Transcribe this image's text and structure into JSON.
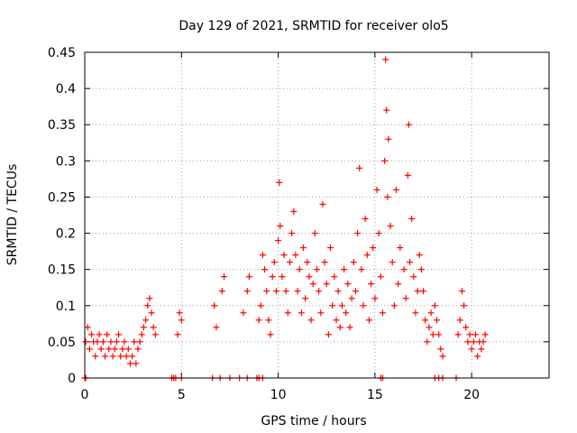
{
  "chart_data": {
    "type": "scatter",
    "title": "Day 129 of 2021, SRMTID for receiver olo5",
    "xlabel": "GPS time / hours",
    "ylabel": "SRMTID / TECUs",
    "xlim": [
      0,
      24
    ],
    "ylim": [
      0,
      0.45
    ],
    "xticks": [
      0,
      5,
      10,
      15,
      20
    ],
    "xtick_labels": [
      "0",
      "5",
      "10",
      "15",
      "20"
    ],
    "yticks": [
      0,
      0.05,
      0.1,
      0.15,
      0.2,
      0.25,
      0.3,
      0.35,
      0.4,
      0.45
    ],
    "ytick_labels": [
      "0",
      "0.05",
      "0.1",
      "0.15",
      "0.2",
      "0.25",
      "0.3",
      "0.35",
      "0.4",
      "0.45"
    ],
    "grid": true,
    "marker": "plus",
    "series": [
      {
        "name": "SRMTID",
        "color": "#ff0000",
        "x": [
          0.05,
          0.15,
          0.25,
          0.35,
          0.45,
          0.55,
          0.65,
          0.75,
          0.85,
          0.95,
          1.05,
          1.15,
          1.25,
          1.35,
          1.45,
          1.55,
          1.65,
          1.75,
          1.85,
          1.95,
          2.05,
          2.15,
          2.25,
          2.35,
          2.45,
          2.55,
          2.65,
          2.75,
          2.85,
          2.95,
          3.05,
          3.15,
          3.25,
          3.35,
          3.45,
          3.55,
          3.65,
          4.8,
          4.9,
          5.0,
          6.7,
          6.8,
          7.1,
          7.2,
          8.2,
          8.4,
          8.5,
          9.0,
          9.1,
          9.2,
          9.3,
          9.4,
          9.5,
          9.6,
          9.7,
          9.8,
          9.9,
          10.0,
          10.05,
          10.1,
          10.2,
          10.3,
          10.4,
          10.5,
          10.6,
          10.7,
          10.8,
          10.9,
          11.0,
          11.1,
          11.2,
          11.3,
          11.4,
          11.5,
          11.6,
          11.7,
          11.8,
          11.9,
          12.0,
          12.1,
          12.2,
          12.3,
          12.4,
          12.5,
          12.6,
          12.7,
          12.8,
          12.9,
          13.0,
          13.1,
          13.2,
          13.3,
          13.4,
          13.5,
          13.6,
          13.7,
          13.8,
          13.9,
          14.0,
          14.1,
          14.2,
          14.3,
          14.4,
          14.5,
          14.6,
          14.7,
          14.8,
          14.9,
          15.0,
          15.1,
          15.2,
          15.3,
          15.4,
          15.5,
          15.55,
          15.6,
          15.65,
          15.7,
          15.8,
          15.9,
          16.0,
          16.1,
          16.2,
          16.3,
          16.5,
          16.6,
          16.7,
          16.75,
          16.8,
          16.9,
          17.0,
          17.1,
          17.2,
          17.3,
          17.4,
          17.5,
          17.6,
          17.7,
          17.8,
          17.9,
          18.0,
          18.1,
          18.2,
          18.3,
          18.4,
          18.5,
          19.3,
          19.4,
          19.5,
          19.6,
          19.7,
          19.8,
          19.9,
          20.0,
          20.1,
          20.2,
          20.3,
          20.4,
          20.5,
          20.6,
          20.7,
          0.0,
          0.05,
          4.5,
          4.6,
          4.7,
          5.0,
          6.6,
          7.0,
          7.5,
          8.0,
          8.4,
          8.9,
          9.0,
          9.2,
          15.3,
          15.4,
          18.1,
          18.3,
          18.5,
          19.2
        ],
        "y": [
          0.05,
          0.07,
          0.04,
          0.06,
          0.05,
          0.03,
          0.05,
          0.06,
          0.04,
          0.05,
          0.03,
          0.06,
          0.04,
          0.05,
          0.03,
          0.04,
          0.05,
          0.06,
          0.03,
          0.04,
          0.05,
          0.03,
          0.04,
          0.02,
          0.03,
          0.05,
          0.02,
          0.04,
          0.05,
          0.06,
          0.07,
          0.08,
          0.1,
          0.11,
          0.09,
          0.07,
          0.06,
          0.06,
          0.09,
          0.08,
          0.1,
          0.07,
          0.12,
          0.14,
          0.09,
          0.12,
          0.14,
          0.08,
          0.1,
          0.17,
          0.15,
          0.12,
          0.08,
          0.06,
          0.14,
          0.16,
          0.12,
          0.19,
          0.27,
          0.21,
          0.14,
          0.17,
          0.12,
          0.09,
          0.16,
          0.2,
          0.23,
          0.17,
          0.12,
          0.15,
          0.09,
          0.18,
          0.11,
          0.16,
          0.14,
          0.08,
          0.13,
          0.2,
          0.15,
          0.12,
          0.09,
          0.24,
          0.16,
          0.13,
          0.06,
          0.18,
          0.1,
          0.14,
          0.08,
          0.12,
          0.07,
          0.1,
          0.15,
          0.09,
          0.13,
          0.07,
          0.11,
          0.16,
          0.12,
          0.2,
          0.29,
          0.15,
          0.1,
          0.22,
          0.17,
          0.08,
          0.13,
          0.18,
          0.11,
          0.26,
          0.2,
          0.14,
          0.09,
          0.3,
          0.44,
          0.37,
          0.25,
          0.33,
          0.21,
          0.16,
          0.1,
          0.26,
          0.13,
          0.18,
          0.15,
          0.11,
          0.28,
          0.35,
          0.16,
          0.22,
          0.14,
          0.09,
          0.12,
          0.17,
          0.15,
          0.12,
          0.08,
          0.05,
          0.07,
          0.09,
          0.06,
          0.1,
          0.08,
          0.06,
          0.04,
          0.03,
          0.06,
          0.08,
          0.12,
          0.1,
          0.07,
          0.05,
          0.06,
          0.04,
          0.05,
          0.06,
          0.03,
          0.05,
          0.04,
          0.05,
          0.06,
          0,
          0,
          0,
          0,
          0,
          0,
          0,
          0,
          0,
          0,
          0,
          0,
          0,
          0,
          0,
          0,
          0,
          0,
          0,
          0
        ]
      }
    ]
  }
}
